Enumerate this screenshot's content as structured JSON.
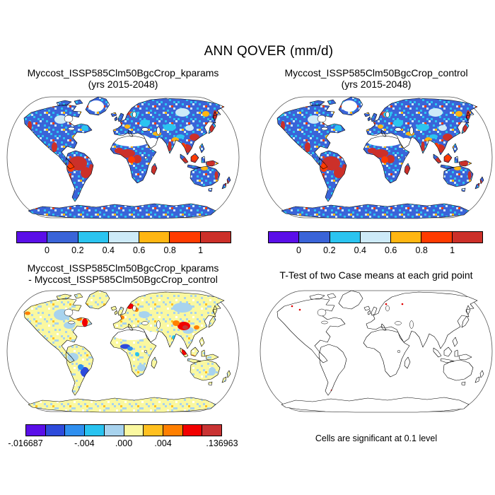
{
  "title": "ANN QOVER (mm/d)",
  "panels": {
    "top_left": {
      "title_line1": "Myccost_ISSP585Clm50BgcCrop_kparams",
      "title_line2": "(yrs 2015-2048)"
    },
    "top_right": {
      "title_line1": "Myccost_ISSP585Clm50BgcCrop_control",
      "title_line2": "(yrs 2015-2048)"
    },
    "bottom_left": {
      "title_line1": "Myccost_ISSP585Clm50BgcCrop_kparams",
      "title_line2": "- Myccost_ISSP585Clm50BgcCrop_control"
    },
    "bottom_right": {
      "title": "T-Test of two Case means at each grid point",
      "caption": "Cells are significant at 0.1 level"
    }
  },
  "map_style": {
    "ocean": "#FFFFFF",
    "coastline": "#000000",
    "projection_border": "#555555",
    "masked_land": "#FFFFFF",
    "significant_cell": "#E00000"
  },
  "chart_data": [
    {
      "type": "heatmap",
      "subtype": "world-map-robinson",
      "variable": "ANN QOVER (mm/d)",
      "title": "Myccost_ISSP585Clm50BgcCrop_kparams (yrs 2015-2048)",
      "legend_position": "below",
      "colorbar": {
        "bin_colors": [
          "#5A0FE8",
          "#3A64D8",
          "#2BC4F0",
          "#CDEAF8",
          "#FFB612",
          "#FF3B00",
          "#CC3029"
        ],
        "ticks": [
          {
            "label": "0",
            "pos": 0.1429
          },
          {
            "label": "0.2",
            "pos": 0.2857
          },
          {
            "label": "0.4",
            "pos": 0.4286
          },
          {
            "label": "0.6",
            "pos": 0.5714
          },
          {
            "label": "0.8",
            "pos": 0.7143
          },
          {
            "label": "1",
            "pos": 0.8571
          }
        ]
      },
      "summary": "Most land 0-0.2 mm/d (blue) with cyan/pale-blue speckle; >0.8 mm/d (red/orange) over Amazon, Congo, SE Asia, Indonesia, Madagascar, east Brazil and wet coastal mountains; Sahara, Arabia and Greenland interior masked white; Antarctica uniform blue; ocean white."
    },
    {
      "type": "heatmap",
      "subtype": "world-map-robinson",
      "variable": "ANN QOVER (mm/d)",
      "title": "Myccost_ISSP585Clm50BgcCrop_control (yrs 2015-2048)",
      "legend_position": "below",
      "colorbar": {
        "bin_colors": [
          "#5A0FE8",
          "#3A64D8",
          "#2BC4F0",
          "#CDEAF8",
          "#FFB612",
          "#FF3B00",
          "#CC3029"
        ],
        "ticks": [
          {
            "label": "0",
            "pos": 0.1429
          },
          {
            "label": "0.2",
            "pos": 0.2857
          },
          {
            "label": "0.4",
            "pos": 0.4286
          },
          {
            "label": "0.6",
            "pos": 0.5714
          },
          {
            "label": "0.8",
            "pos": 0.7143
          },
          {
            "label": "1",
            "pos": 0.8571
          }
        ]
      },
      "summary": "Visually identical to the kparams case: blue land with red/orange tropical and coastal maxima, masked Sahara/Arabia/Greenland, blue Antarctica."
    },
    {
      "type": "heatmap",
      "subtype": "world-map-robinson",
      "variable": "ANN QOVER difference (mm/d)",
      "title": "Myccost_ISSP585Clm50BgcCrop_kparams - Myccost_ISSP585Clm50BgcCrop_control",
      "legend_position": "below",
      "value_range": [
        -0.016687,
        0.136963
      ],
      "colorbar": {
        "bin_colors": [
          "#5A0FE8",
          "#2E4BDB",
          "#2F8FEF",
          "#29C3F0",
          "#A8D3EE",
          "#FAF8A0",
          "#FFC020",
          "#FF7F00",
          "#F20000",
          "#C93333"
        ],
        "ticks": [
          {
            "label": "-.016687",
            "pos": 0
          },
          {
            "label": "-.004",
            "pos": 0.3
          },
          {
            "label": ".000",
            "pos": 0.5
          },
          {
            "label": ".004",
            "pos": 0.7
          },
          {
            "label": ".136963",
            "pos": 1
          }
        ]
      },
      "summary": "Differences near zero: pale-yellow/light-blue speckled land; positive clusters (orange/red) over NE North America, Scandinavia, western Europe, central Asia and Sumatra/Indonesia; negative (blue) over SE Brazil and West Africa; Antarctica and Greenland pale yellow."
    },
    {
      "type": "outline-map",
      "subtype": "world-map-robinson",
      "title": "T-Test of two Case means at each grid point",
      "caption": "Cells are significant at 0.1 level",
      "summary": "Plain black coastline outline on white; only a few scattered tiny red cells are significant (NW North America, N Europe, Siberia, Indonesia, S Chile, New Zealand)."
    }
  ]
}
